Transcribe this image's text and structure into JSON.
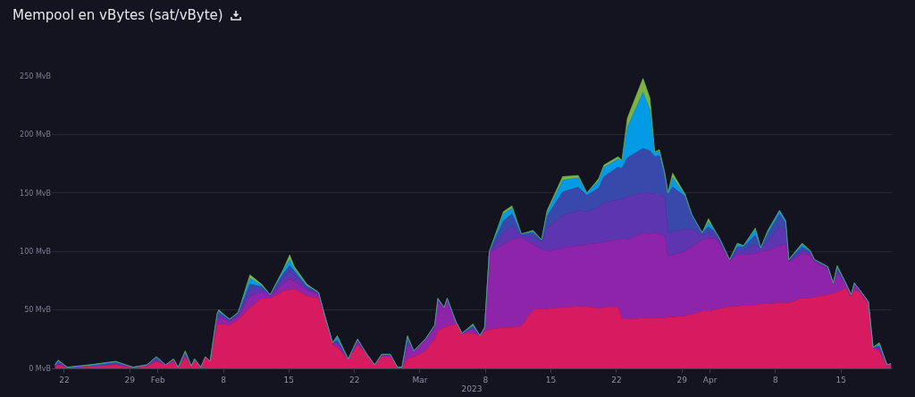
{
  "chart_data": {
    "type": "area",
    "stacked": true,
    "title": "Mempool en vBytes (sat/vByte)",
    "xlabel": "2023",
    "grid": "y",
    "marker": "none",
    "line_style": "solid",
    "xlim": [
      "2023-01-20T16:00",
      "2023-04-20T10:00"
    ],
    "xticks": [
      {
        "value": "2023-01-22",
        "label": "22"
      },
      {
        "value": "2023-01-29",
        "label": "29"
      },
      {
        "value": "2023-02-01",
        "label": "Feb"
      },
      {
        "value": "2023-02-08",
        "label": "8"
      },
      {
        "value": "2023-02-15",
        "label": "15"
      },
      {
        "value": "2023-02-22",
        "label": "22"
      },
      {
        "value": "2023-03-01",
        "label": "Mar"
      },
      {
        "value": "2023-03-08",
        "label": "8"
      },
      {
        "value": "2023-03-15",
        "label": "15"
      },
      {
        "value": "2023-03-22",
        "label": "22"
      },
      {
        "value": "2023-03-29",
        "label": "29"
      },
      {
        "value": "2023-04-01",
        "label": "Apr"
      },
      {
        "value": "2023-04-08",
        "label": "8"
      },
      {
        "value": "2023-04-15",
        "label": "15"
      }
    ],
    "ylim": [
      0,
      250
    ],
    "yticks": [
      {
        "value": 0,
        "label": "0 MvB"
      },
      {
        "value": 50,
        "label": "50 MvB"
      },
      {
        "value": 100,
        "label": "100 MvB"
      },
      {
        "value": 150,
        "label": "150 MvB"
      },
      {
        "value": 200,
        "label": "200 MvB"
      },
      {
        "value": 250,
        "label": "250 MvB"
      }
    ],
    "x": [
      "2023-01-21T00:00",
      "2023-01-21T08:00",
      "2023-01-22T08:00",
      "2023-01-24T16:00",
      "2023-01-27T12:00",
      "2023-01-29T08:00",
      "2023-01-30T20:00",
      "2023-01-31T20:00",
      "2023-02-01T20:00",
      "2023-02-02T16:00",
      "2023-02-03T04:00",
      "2023-02-03T22:00",
      "2023-02-04T14:00",
      "2023-02-04T22:00",
      "2023-02-05T14:00",
      "2023-02-06T02:00",
      "2023-02-06T14:00",
      "2023-02-07T08:00",
      "2023-02-07T12:00",
      "2023-02-08T16:00",
      "2023-02-09T14:00",
      "2023-02-10T20:00",
      "2023-02-12T02:00",
      "2023-02-13T00:00",
      "2023-02-14T10:00",
      "2023-02-15T02:00",
      "2023-02-15T14:00",
      "2023-02-16T22:00",
      "2023-02-18T04:00",
      "2023-02-18T20:00",
      "2023-02-19T16:00",
      "2023-02-20T04:00",
      "2023-02-21T08:00",
      "2023-02-22T08:00",
      "2023-02-23T08:00",
      "2023-02-24T04:00",
      "2023-02-24T22:00",
      "2023-02-25T20:00",
      "2023-02-26T14:00",
      "2023-02-27T02:00",
      "2023-02-27T16:00",
      "2023-02-28T08:00",
      "2023-03-01T14:00",
      "2023-03-02T14:00",
      "2023-03-02T22:00",
      "2023-03-03T14:00",
      "2023-03-03T22:00",
      "2023-03-04T20:00",
      "2023-03-05T12:00",
      "2023-03-06T16:00",
      "2023-03-07T10:00",
      "2023-03-07T22:00",
      "2023-03-08T10:00",
      "2023-03-09T22:00",
      "2023-03-10T20:00",
      "2023-03-11T20:00",
      "2023-03-13T02:00",
      "2023-03-14T00:00",
      "2023-03-14T14:00",
      "2023-03-16T06:00",
      "2023-03-17T22:00",
      "2023-03-18T20:00",
      "2023-03-20T02:00",
      "2023-03-20T16:00",
      "2023-03-22T04:00",
      "2023-03-22T14:00",
      "2023-03-23T04:00",
      "2023-03-24T20:00",
      "2023-03-25T14:00",
      "2023-03-26T02:00",
      "2023-03-26T14:00",
      "2023-03-27T04:00",
      "2023-03-27T12:00",
      "2023-03-28T00:00",
      "2023-03-29T08:00",
      "2023-03-30T02:00",
      "2023-03-31T04:00",
      "2023-03-31T20:00",
      "2023-04-01T12:00",
      "2023-04-02T02:00",
      "2023-04-03T02:00",
      "2023-04-03T22:00",
      "2023-04-04T14:00",
      "2023-04-05T20:00",
      "2023-04-06T10:00",
      "2023-04-07T04:00",
      "2023-04-08T10:00",
      "2023-04-09T02:00",
      "2023-04-09T10:00",
      "2023-04-10T20:00",
      "2023-04-11T16:00",
      "2023-04-12T04:00",
      "2023-04-13T14:00",
      "2023-04-14T04:00",
      "2023-04-14T14:00",
      "2023-04-15T12:00",
      "2023-04-16T02:00",
      "2023-04-16T10:00",
      "2023-04-17T00:00",
      "2023-04-17T22:00",
      "2023-04-18T10:00",
      "2023-04-19T02:00",
      "2023-04-19T22:00",
      "2023-04-20T08:00"
    ],
    "series": [
      {
        "color": "#d81b60",
        "values": [
          1,
          3,
          1,
          2,
          3,
          1,
          2,
          6,
          3,
          6,
          1,
          10,
          2,
          7,
          1,
          9,
          6,
          38,
          38,
          37,
          42,
          52,
          60,
          60,
          66,
          67,
          68,
          62,
          60,
          45,
          20,
          18,
          8,
          20,
          12,
          3,
          10,
          10,
          1,
          1,
          8,
          10,
          15,
          25,
          32,
          35,
          36,
          38,
          30,
          30,
          28,
          32,
          33,
          35,
          35,
          36,
          50,
          51,
          51,
          52,
          53,
          53,
          51,
          52,
          52,
          42,
          42,
          43,
          43,
          43,
          43,
          43,
          44,
          44,
          45,
          46,
          49,
          49,
          50,
          51,
          53,
          53,
          54,
          54,
          55,
          55,
          56,
          56,
          56,
          60,
          60,
          61,
          63,
          64,
          65,
          69,
          61,
          67,
          65,
          55,
          17,
          15,
          2,
          3
        ]
      },
      {
        "color": "#8e24aa",
        "values": [
          1,
          1,
          0,
          0,
          1,
          0,
          1,
          1,
          0,
          1,
          0,
          1,
          0,
          1,
          0,
          1,
          0,
          5,
          6,
          3,
          3,
          10,
          5,
          2,
          7,
          9,
          7,
          5,
          3,
          0,
          1,
          3,
          0,
          2,
          0,
          0,
          1,
          1,
          0,
          0,
          12,
          5,
          9,
          10,
          24,
          16,
          21,
          2,
          0,
          4,
          0,
          3,
          66,
          71,
          75,
          76,
          56,
          51,
          49,
          51,
          52,
          53,
          56,
          56,
          58,
          68,
          68,
          73,
          72,
          73,
          72,
          70,
          52,
          53,
          55,
          58,
          61,
          62,
          61,
          55,
          39,
          44,
          43,
          44,
          45,
          46,
          49,
          50,
          35,
          38,
          37,
          30,
          22,
          8,
          16,
          3,
          1,
          4,
          1,
          1,
          1,
          2,
          1,
          1
        ]
      },
      {
        "color": "#5e35b1",
        "values": [
          0,
          1,
          0,
          0,
          0,
          0,
          0,
          1,
          0,
          0,
          0,
          1,
          0,
          0,
          0,
          0,
          0,
          2,
          2,
          1,
          1,
          6,
          3,
          1,
          5,
          7,
          5,
          2,
          1,
          0,
          1,
          2,
          0,
          2,
          0,
          0,
          1,
          1,
          0,
          0,
          3,
          0,
          1,
          1,
          2,
          1,
          1,
          0,
          0,
          1,
          0,
          0,
          1,
          10,
          12,
          2,
          6,
          6,
          20,
          28,
          30,
          28,
          31,
          34,
          34,
          35,
          37,
          34,
          35,
          33,
          34,
          33,
          20,
          20,
          19,
          15,
          4,
          5,
          3,
          2,
          1,
          4,
          4,
          8,
          2,
          8,
          16,
          12,
          1,
          3,
          2,
          1,
          1,
          1,
          3,
          1,
          1,
          1,
          1,
          1,
          0,
          1,
          0,
          0
        ]
      },
      {
        "color": "#3949ab",
        "values": [
          0,
          1,
          0,
          0,
          1,
          0,
          0,
          1,
          0,
          1,
          0,
          1,
          0,
          0,
          0,
          0,
          0,
          1,
          2,
          1,
          1,
          4,
          2,
          0,
          3,
          5,
          3,
          1,
          1,
          0,
          0,
          1,
          0,
          1,
          0,
          0,
          0,
          0,
          0,
          0,
          2,
          0,
          0,
          1,
          1,
          0,
          1,
          0,
          0,
          1,
          0,
          0,
          0,
          10,
          10,
          1,
          4,
          2,
          10,
          20,
          20,
          14,
          16,
          22,
          28,
          26,
          33,
          38,
          36,
          32,
          33,
          18,
          33,
          38,
          28,
          11,
          2,
          5,
          3,
          2,
          0,
          3,
          3,
          8,
          1,
          6,
          11,
          6,
          1,
          3,
          1,
          1,
          1,
          0,
          2,
          0,
          0,
          1,
          0,
          0,
          0,
          1,
          0,
          0
        ]
      },
      {
        "color": "#039be5",
        "values": [
          1,
          1,
          0,
          1,
          1,
          0,
          0,
          1,
          0,
          0,
          0,
          1,
          0,
          0,
          0,
          0,
          0,
          1,
          1,
          0,
          1,
          5,
          1,
          0,
          3,
          5,
          2,
          1,
          0,
          0,
          0,
          3,
          0,
          0,
          0,
          0,
          0,
          0,
          0,
          0,
          2,
          0,
          0,
          0,
          0,
          0,
          1,
          0,
          0,
          1,
          0,
          0,
          0,
          6,
          5,
          0,
          1,
          0,
          3,
          10,
          8,
          2,
          6,
          8,
          7,
          6,
          26,
          48,
          35,
          3,
          4,
          2,
          1,
          8,
          1,
          1,
          0,
          4,
          1,
          0,
          0,
          2,
          1,
          5,
          0,
          2,
          3,
          2,
          0,
          2,
          1,
          0,
          0,
          0,
          1,
          0,
          0,
          0,
          0,
          0,
          0,
          2,
          0,
          0
        ]
      },
      {
        "color": "#7cb342",
        "values": [
          0,
          0,
          0,
          0,
          0,
          0,
          0,
          0,
          0,
          0,
          0,
          1,
          0,
          0,
          0,
          0,
          0,
          0,
          1,
          0,
          0,
          3,
          1,
          0,
          1,
          4,
          2,
          1,
          0,
          0,
          0,
          1,
          0,
          0,
          0,
          0,
          0,
          0,
          0,
          0,
          1,
          0,
          0,
          0,
          1,
          0,
          0,
          0,
          0,
          1,
          0,
          0,
          0,
          2,
          2,
          0,
          1,
          0,
          2,
          3,
          2,
          0,
          2,
          2,
          2,
          1,
          8,
          12,
          10,
          1,
          1,
          1,
          0,
          4,
          1,
          0,
          0,
          3,
          0,
          0,
          0,
          1,
          0,
          1,
          0,
          1,
          0,
          0,
          0,
          1,
          0,
          0,
          0,
          0,
          1,
          0,
          0,
          0,
          0,
          0,
          0,
          1,
          0,
          0
        ]
      }
    ]
  }
}
